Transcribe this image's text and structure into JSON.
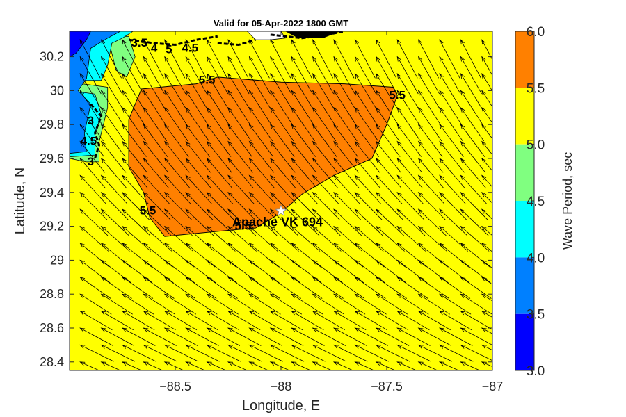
{
  "title": "Valid for 05-Apr-2022 1800 GMT",
  "axes": {
    "xlabel": "Longitude, E",
    "ylabel": "Latitude, N",
    "xlim": [
      -89.0,
      -87.0
    ],
    "ylim": [
      28.35,
      30.35
    ],
    "xticks": [
      -88.5,
      -88.0,
      -87.5,
      -87.0
    ],
    "xtick_labels": [
      "−88.5",
      "−88",
      "−87.5",
      "−87"
    ],
    "yticks": [
      28.4,
      28.6,
      28.8,
      29.0,
      29.2,
      29.4,
      29.6,
      29.8,
      30.0,
      30.2
    ],
    "ytick_labels": [
      "28.4",
      "28.6",
      "28.8",
      "29",
      "29.2",
      "29.4",
      "29.6",
      "29.8",
      "30",
      "30.2"
    ]
  },
  "colorbar": {
    "label": "Wave Period, sec",
    "ticks": [
      "3.0",
      "3.5",
      "4.0",
      "4.5",
      "5.0",
      "5.5",
      "6.0"
    ],
    "colors": [
      "#0000ff",
      "#0080ff",
      "#00ffff",
      "#80ff80",
      "#ffff00",
      "#ff8000"
    ]
  },
  "station": {
    "name": "Apache VK 694",
    "lon": -88.0,
    "lat": 29.29
  },
  "contour_labels": [
    {
      "text": "5.5",
      "lon": -88.35,
      "lat": 30.04
    },
    {
      "text": "5.5",
      "lon": -87.45,
      "lat": 29.95
    },
    {
      "text": "5.5",
      "lon": -88.63,
      "lat": 29.27
    },
    {
      "text": "5.5",
      "lon": -88.18,
      "lat": 29.18
    },
    {
      "text": "3.5",
      "lon": -88.67,
      "lat": 30.26
    },
    {
      "text": "4",
      "lon": -88.6,
      "lat": 30.23
    },
    {
      "text": "5",
      "lon": -88.53,
      "lat": 30.22
    },
    {
      "text": "4.5",
      "lon": -88.43,
      "lat": 30.23
    },
    {
      "text": "3",
      "lon": -88.9,
      "lat": 29.8
    },
    {
      "text": "4.5",
      "lon": -88.91,
      "lat": 29.68
    },
    {
      "text": "3",
      "lon": -88.9,
      "lat": 29.56
    }
  ],
  "chart_data": {
    "type": "heatmap",
    "title": "Valid for 05-Apr-2022 1800 GMT",
    "xlabel": "Longitude, E",
    "ylabel": "Latitude, N",
    "xlim": [
      -89.0,
      -87.0
    ],
    "ylim": [
      28.35,
      30.35
    ],
    "field": "Wave Period, sec",
    "colorbar_range": [
      3.0,
      6.0
    ],
    "background_value_range": [
      5.0,
      5.5
    ],
    "regions": [
      {
        "name": "5.5-6.0",
        "color": "#ff8000",
        "polygon": [
          [
            -88.72,
            29.83
          ],
          [
            -88.66,
            30.01
          ],
          [
            -88.4,
            30.04
          ],
          [
            -88.3,
            30.08
          ],
          [
            -88.0,
            30.05
          ],
          [
            -87.7,
            30.04
          ],
          [
            -87.47,
            30.02
          ],
          [
            -87.45,
            29.97
          ],
          [
            -87.5,
            29.8
          ],
          [
            -87.57,
            29.6
          ],
          [
            -87.75,
            29.5
          ],
          [
            -87.9,
            29.39
          ],
          [
            -88.0,
            29.28
          ],
          [
            -88.12,
            29.19
          ],
          [
            -88.3,
            29.17
          ],
          [
            -88.55,
            29.14
          ],
          [
            -88.62,
            29.25
          ],
          [
            -88.65,
            29.4
          ],
          [
            -88.72,
            29.55
          ]
        ]
      },
      {
        "name": "4.5-5.0 north",
        "color": "#80ff80",
        "polygon": [
          [
            -88.82,
            30.32
          ],
          [
            -88.72,
            30.32
          ],
          [
            -88.69,
            30.2
          ],
          [
            -88.73,
            30.08
          ],
          [
            -88.78,
            30.12
          ]
        ]
      },
      {
        "name": "4.5-5.0 west",
        "color": "#80ff80",
        "polygon": [
          [
            -89.0,
            30.05
          ],
          [
            -88.82,
            30.02
          ],
          [
            -88.82,
            29.9
          ],
          [
            -88.86,
            29.7
          ],
          [
            -88.86,
            29.58
          ],
          [
            -88.92,
            29.58
          ],
          [
            -89.0,
            29.6
          ]
        ]
      },
      {
        "name": "4.0-4.5 north",
        "color": "#00ffff",
        "polygon": [
          [
            -89.0,
            30.35
          ],
          [
            -88.7,
            30.35
          ],
          [
            -88.75,
            30.31
          ],
          [
            -88.8,
            30.28
          ],
          [
            -88.82,
            30.15
          ],
          [
            -88.85,
            30.06
          ],
          [
            -89.0,
            30.06
          ]
        ]
      },
      {
        "name": "4.0-4.5 west",
        "color": "#00ffff",
        "polygon": [
          [
            -89.0,
            30.0
          ],
          [
            -88.88,
            29.98
          ],
          [
            -88.85,
            29.86
          ],
          [
            -88.88,
            29.74
          ],
          [
            -88.88,
            29.62
          ],
          [
            -89.0,
            29.61
          ]
        ]
      },
      {
        "name": "3.5-4.0",
        "color": "#0080ff",
        "polygon": [
          [
            -89.0,
            30.35
          ],
          [
            -88.76,
            30.35
          ],
          [
            -88.82,
            30.31
          ],
          [
            -88.9,
            30.25
          ],
          [
            -88.92,
            30.07
          ],
          [
            -88.96,
            30.0
          ],
          [
            -88.9,
            29.92
          ],
          [
            -88.93,
            29.75
          ],
          [
            -88.92,
            29.64
          ],
          [
            -89.0,
            29.63
          ]
        ]
      },
      {
        "name": "3.0-3.5",
        "color": "#0000ff",
        "polygon": [
          [
            -89.0,
            30.35
          ],
          [
            -88.9,
            30.35
          ],
          [
            -88.92,
            30.3
          ],
          [
            -88.97,
            30.22
          ],
          [
            -89.0,
            30.2
          ]
        ]
      },
      {
        "name": "coastline-islands",
        "color": "#ffffff",
        "polygon": [
          [
            -88.16,
            30.35
          ],
          [
            -88.0,
            30.35
          ],
          [
            -87.98,
            30.31
          ],
          [
            -88.05,
            30.3
          ],
          [
            -88.12,
            30.3
          ]
        ]
      }
    ],
    "vector_field": {
      "description": "wave direction arrows",
      "grid_lon_step": 0.1,
      "grid_lat_step": 0.1
    }
  }
}
